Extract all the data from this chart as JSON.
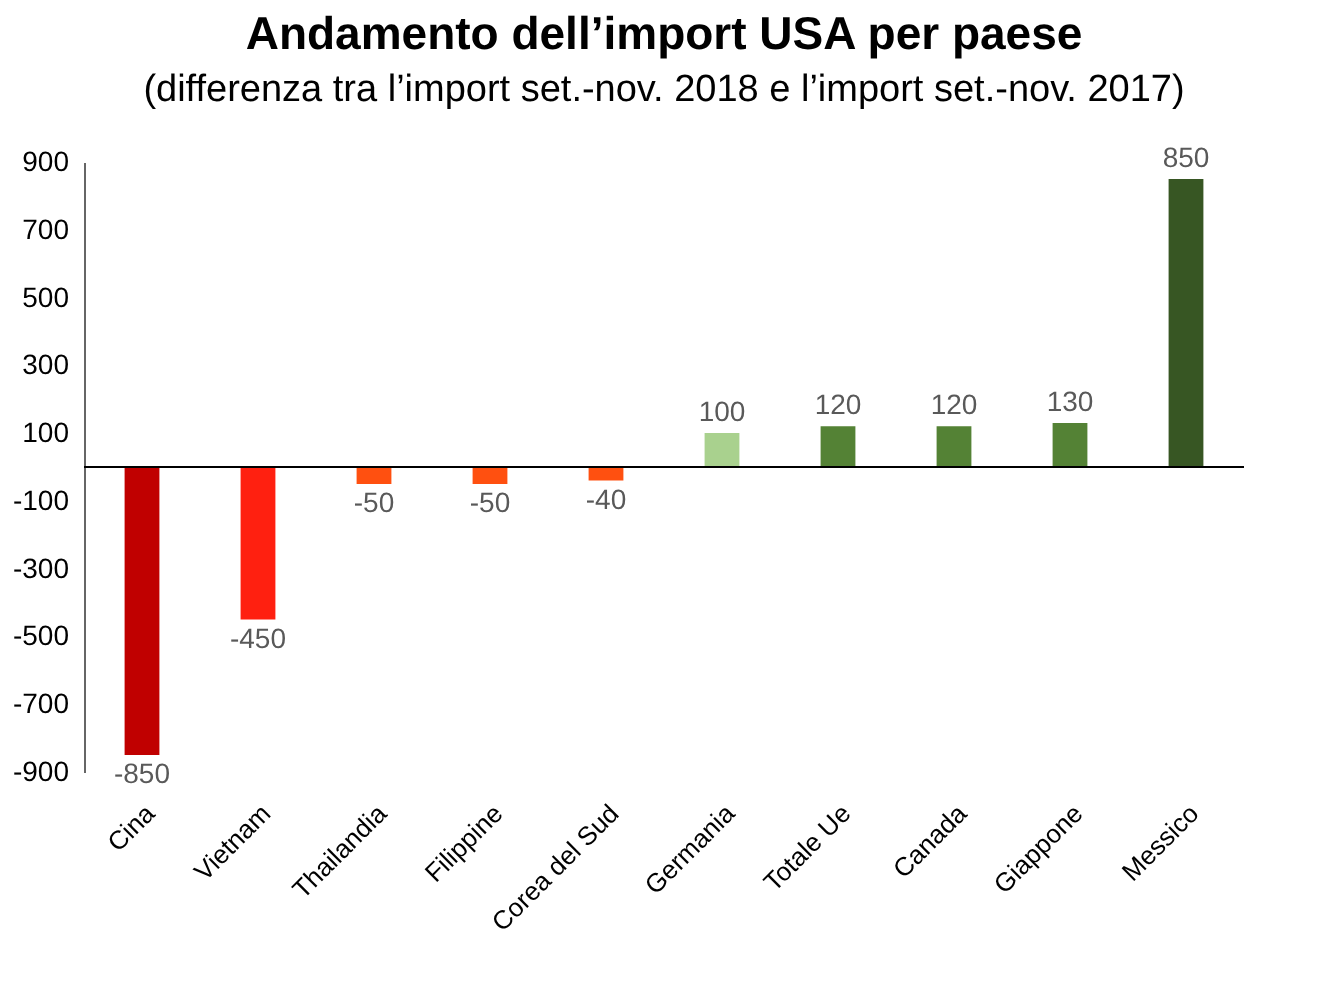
{
  "chart_data": {
    "type": "bar",
    "title": "Andamento dell’import USA per paese",
    "subtitle": "(differenza tra l’import set.-nov. 2018 e l’import set.-nov. 2017)",
    "categories": [
      "Cina",
      "Vietnam",
      "Thailandia",
      "Filippine",
      "Corea del Sud",
      "Germania",
      "Totale Ue",
      "Canada",
      "Giappone",
      "Messico"
    ],
    "values": [
      -850,
      -450,
      -50,
      -50,
      -40,
      100,
      120,
      120,
      130,
      850
    ],
    "colors": [
      "#c00000",
      "#ff2010",
      "#ff5010",
      "#ff5010",
      "#ff5010",
      "#a9d18e",
      "#548235",
      "#548235",
      "#548235",
      "#375623"
    ],
    "ylim": [
      -900,
      900
    ],
    "yticks": [
      -900,
      -700,
      -500,
      -300,
      -100,
      100,
      300,
      500,
      700,
      900
    ],
    "data_labels": true,
    "grid": false
  }
}
